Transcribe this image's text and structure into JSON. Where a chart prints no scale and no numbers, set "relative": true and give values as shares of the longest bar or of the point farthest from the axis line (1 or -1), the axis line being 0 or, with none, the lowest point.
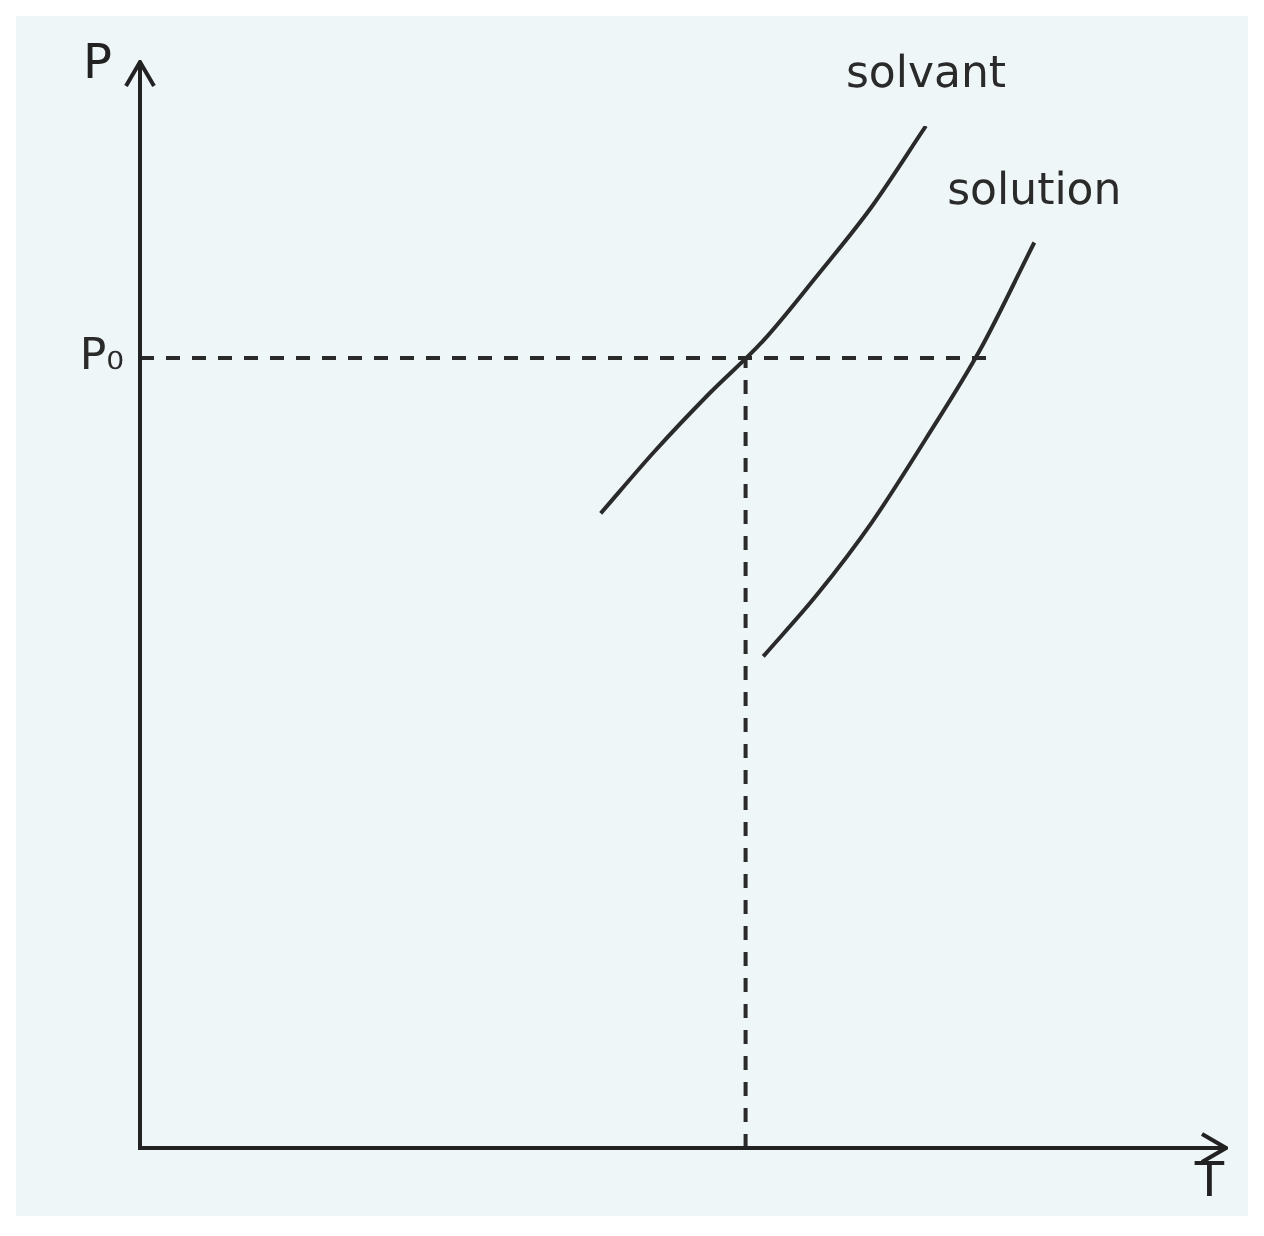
{
  "chart_data": {
    "type": "line",
    "relative": true,
    "xlabel": "T",
    "ylabel": "P",
    "categories": [
      null,
      null,
      null,
      null,
      null,
      null,
      null,
      null,
      null,
      null,
      null,
      null,
      null,
      null,
      null,
      null,
      null,
      null,
      null,
      null
    ],
    "series": [
      {
        "name": "solvant",
        "color": "#2a2a2a",
        "values": [
          null,
          null,
          null,
          null,
          null,
          null,
          null,
          null,
          0.621,
          0.682,
          0.738,
          0.79,
          0.854,
          0.921,
          1,
          null,
          null,
          null,
          null,
          null
        ]
      },
      {
        "name": "solution",
        "color": "#2a2a2a",
        "values": [
          null,
          null,
          null,
          null,
          null,
          null,
          null,
          null,
          null,
          null,
          null,
          0.481,
          0.542,
          0.612,
          0.694,
          0.781,
          0.886,
          null,
          null,
          null
        ]
      }
    ],
    "ref_lines": [
      {
        "axis": "y",
        "value": 0.773,
        "label": "P₀",
        "color": "#2a2a2a",
        "line_style": "dashed"
      }
    ]
  }
}
